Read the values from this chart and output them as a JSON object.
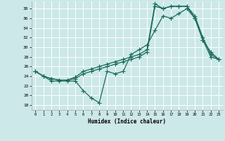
{
  "xlabel": "Humidex (Indice chaleur)",
  "bg_color": "#cce8e8",
  "grid_color": "#ffffff",
  "line_color": "#1a6b5a",
  "xlim": [
    -0.5,
    23.5
  ],
  "ylim": [
    17,
    39.5
  ],
  "xticks": [
    0,
    1,
    2,
    3,
    4,
    5,
    6,
    7,
    8,
    9,
    10,
    11,
    12,
    13,
    14,
    15,
    16,
    17,
    18,
    19,
    20,
    21,
    22,
    23
  ],
  "yticks": [
    18,
    20,
    22,
    24,
    26,
    28,
    30,
    32,
    34,
    36,
    38
  ],
  "line1_y": [
    25,
    24,
    23,
    23,
    23,
    23,
    21,
    19.5,
    18.5,
    25,
    24.5,
    25,
    28.5,
    29.5,
    30.5,
    33.5,
    36.5,
    36,
    37,
    38,
    36,
    31.5,
    29,
    27.5
  ],
  "line2_y": [
    25,
    24,
    23.5,
    23.2,
    23.2,
    23.5,
    24.5,
    25,
    25.5,
    26,
    26.5,
    27,
    27.5,
    28,
    29,
    38.5,
    38,
    38.5,
    38.5,
    38.5,
    36.5,
    32,
    28.5,
    27.5
  ],
  "line3_y": [
    25,
    24,
    23.5,
    23.2,
    23.2,
    23.8,
    25,
    25.5,
    26,
    26.5,
    27,
    27.5,
    28,
    28.5,
    29.5,
    39,
    38,
    38.5,
    38.5,
    38.5,
    36,
    31.5,
    28,
    27.5
  ]
}
